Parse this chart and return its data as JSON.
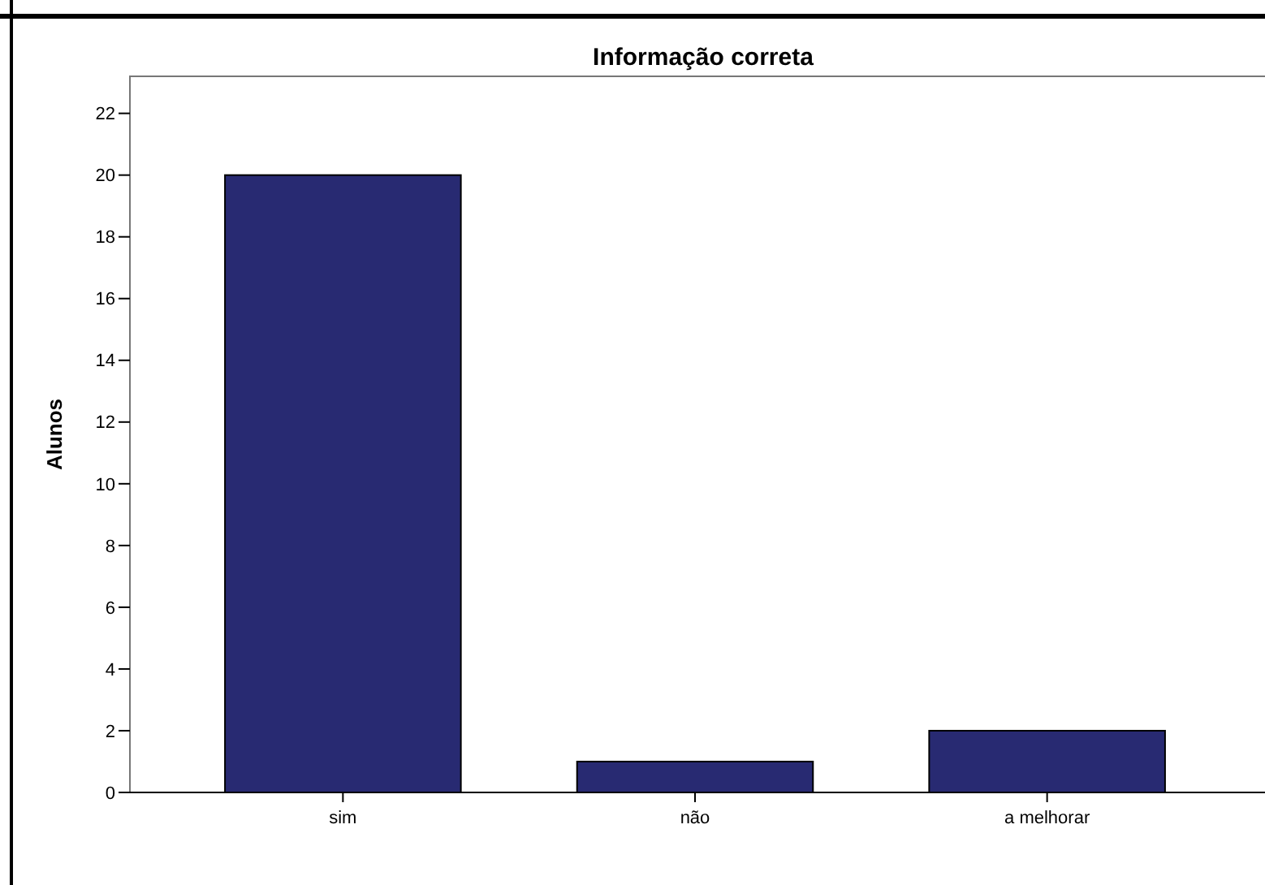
{
  "chart_data": {
    "type": "bar",
    "title": "Informação correta",
    "ylabel": "Alunos",
    "categories": [
      "sim",
      "não",
      "a melhorar"
    ],
    "values": [
      20,
      1,
      2
    ],
    "color": "#282a72",
    "ylim": [
      0,
      23.2
    ],
    "yticks": [
      0,
      2,
      4,
      6,
      8,
      10,
      12,
      14,
      16,
      18,
      20,
      22
    ],
    "grid": false
  }
}
